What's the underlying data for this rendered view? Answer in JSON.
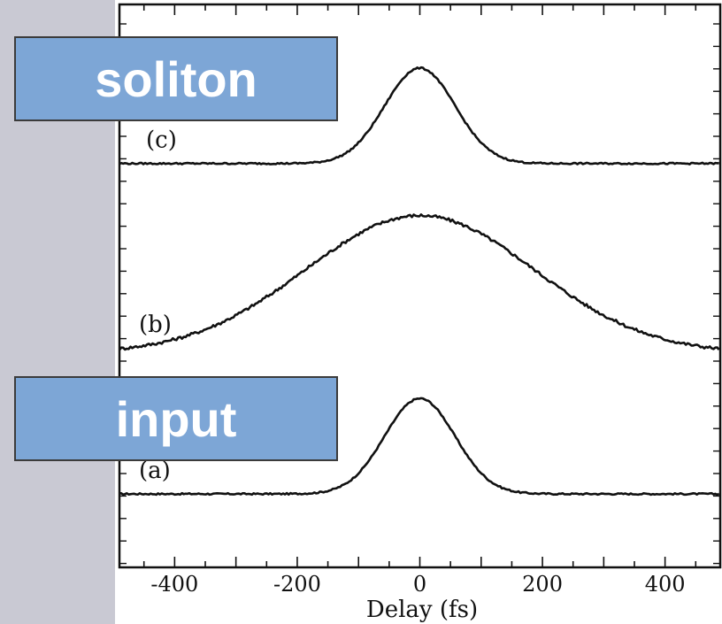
{
  "callouts": {
    "soliton": "soliton",
    "input": "input"
  },
  "chart_data": {
    "type": "line",
    "xlabel": "Delay (fs)",
    "ylabel": "",
    "xlim": [
      -490,
      490
    ],
    "xticks": [
      -400,
      -200,
      0,
      200,
      400
    ],
    "xtick_labels": [
      "-400",
      "-200",
      "0",
      "200",
      "400"
    ],
    "grid": false,
    "series": [
      {
        "name": "(a)",
        "kind": "gaussian",
        "center": 0,
        "fwhm": 135,
        "baseline": 0.3,
        "peak": 1.86
      },
      {
        "name": "(b)",
        "kind": "gaussian",
        "center": 0,
        "fwhm": 440,
        "baseline": 2.6,
        "peak": 4.85
      },
      {
        "name": "(c)",
        "kind": "gaussian",
        "center": 0,
        "fwhm": 135,
        "baseline": 5.7,
        "peak": 7.26
      }
    ],
    "ylim": [
      -0.9,
      8.3
    ]
  }
}
